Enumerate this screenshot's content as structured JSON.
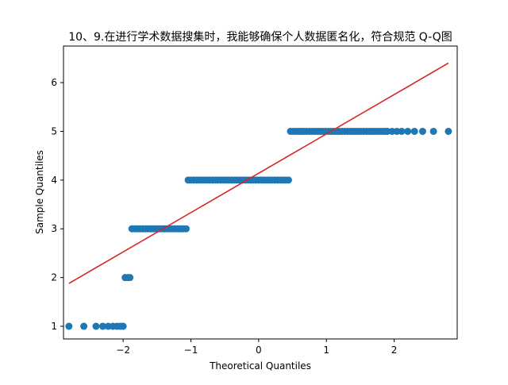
{
  "chart_data": {
    "type": "scatter",
    "title": "10、9.在进行学术数据搜集时，我能够确保个人数据匿名化，符合规范 Q-Q图",
    "xlabel": "Theoretical Quantiles",
    "ylabel": "Sample Quantiles",
    "xlim": [
      -2.88,
      2.93
    ],
    "ylim": [
      0.74,
      6.75
    ],
    "xticks": [
      -2,
      -1,
      0,
      1,
      2
    ],
    "yticks": [
      1,
      2,
      3,
      4,
      5,
      6
    ],
    "point_color": "#1f77b4",
    "line_color": "#d62728",
    "reference_line": {
      "x": [
        -2.8,
        2.8
      ],
      "y": [
        1.88,
        6.4
      ]
    },
    "groups": [
      {
        "y": 1,
        "x_min": -2.8,
        "x_max": -2.0,
        "sparse_x": [
          -2.8,
          -2.58,
          -2.4,
          -2.3,
          -2.22,
          -2.15,
          -2.09,
          -2.04,
          -2.0
        ]
      },
      {
        "y": 2,
        "x_min": -1.97,
        "x_max": -1.9,
        "sparse_x": [
          -1.97,
          -1.93,
          -1.9
        ]
      },
      {
        "y": 3,
        "x_min": -1.87,
        "x_max": -1.06
      },
      {
        "y": 4,
        "x_min": -1.04,
        "x_max": 0.46
      },
      {
        "y": 5,
        "x_min": 0.47,
        "x_max": 2.8,
        "sparse_x": [
          1.9,
          1.97,
          2.04,
          2.11,
          2.2,
          2.3,
          2.42,
          2.58,
          2.8
        ]
      }
    ]
  }
}
